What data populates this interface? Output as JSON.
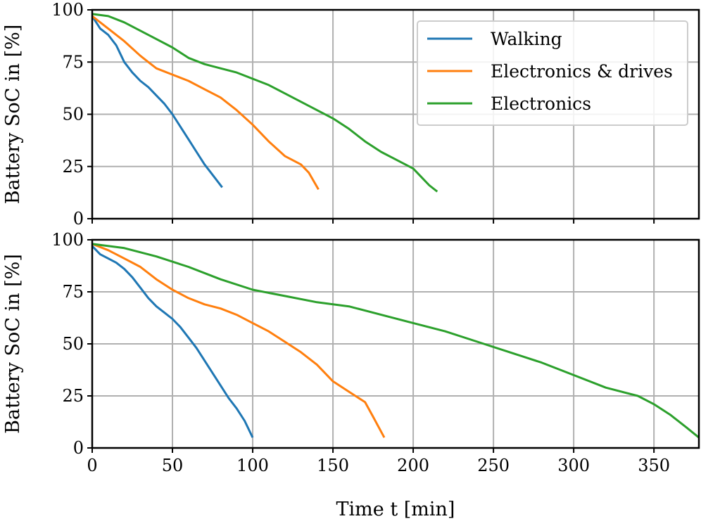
{
  "chart_data": [
    {
      "type": "line",
      "title": "",
      "xlabel": "",
      "ylabel": "Battery SoC in [%]",
      "xlim": [
        0,
        378
      ],
      "ylim": [
        0,
        100
      ],
      "xticks": [
        0,
        50,
        100,
        150,
        200,
        250,
        300,
        350
      ],
      "yticks": [
        0,
        25,
        50,
        75,
        100
      ],
      "grid": true,
      "legend": {
        "placement": "top-right"
      },
      "series": [
        {
          "name": "Walking",
          "color": "#1f77b4",
          "x": [
            0,
            5,
            10,
            15,
            20,
            25,
            30,
            35,
            40,
            45,
            50,
            55,
            60,
            65,
            70,
            75,
            81
          ],
          "y": [
            97,
            91,
            88,
            83,
            75,
            70,
            66,
            63,
            59,
            55,
            50,
            44,
            38,
            32,
            26,
            21,
            15
          ]
        },
        {
          "name": "Electronics & drives",
          "color": "#ff7f0e",
          "x": [
            0,
            10,
            20,
            30,
            35,
            40,
            50,
            60,
            70,
            80,
            90,
            100,
            110,
            120,
            130,
            135,
            141
          ],
          "y": [
            97,
            91,
            85,
            78,
            75,
            72,
            69,
            66,
            62,
            58,
            52,
            45,
            37,
            30,
            26,
            22,
            14
          ]
        },
        {
          "name": "Electronics",
          "color": "#2ca02c",
          "x": [
            0,
            10,
            20,
            30,
            40,
            50,
            60,
            70,
            80,
            90,
            100,
            110,
            120,
            130,
            140,
            150,
            160,
            170,
            180,
            190,
            200,
            205,
            210,
            215
          ],
          "y": [
            98,
            97,
            94,
            90,
            86,
            82,
            77,
            74,
            72,
            70,
            67,
            64,
            60,
            56,
            52,
            48,
            43,
            37,
            32,
            28,
            24,
            20,
            16,
            13
          ]
        }
      ]
    },
    {
      "type": "line",
      "title": "",
      "xlabel": "Time t [min]",
      "ylabel": "Battery SoC in [%]",
      "xlim": [
        0,
        378
      ],
      "ylim": [
        0,
        100
      ],
      "xticks": [
        0,
        50,
        100,
        150,
        200,
        250,
        300,
        350
      ],
      "yticks": [
        0,
        25,
        50,
        75,
        100
      ],
      "grid": true,
      "series": [
        {
          "color": "#1f77b4",
          "x": [
            0,
            5,
            10,
            15,
            20,
            25,
            30,
            35,
            40,
            45,
            50,
            55,
            60,
            65,
            70,
            75,
            80,
            85,
            90,
            95,
            100
          ],
          "y": [
            97,
            93,
            91,
            89,
            86,
            82,
            77,
            72,
            68,
            65,
            62,
            58,
            53,
            48,
            42,
            36,
            30,
            24,
            19,
            13,
            5
          ]
        },
        {
          "color": "#ff7f0e",
          "x": [
            0,
            10,
            20,
            30,
            40,
            50,
            60,
            70,
            80,
            90,
            100,
            110,
            120,
            130,
            140,
            150,
            160,
            170,
            175,
            182
          ],
          "y": [
            98,
            95,
            91,
            87,
            81,
            76,
            72,
            69,
            67,
            64,
            60,
            56,
            51,
            46,
            40,
            32,
            27,
            22,
            15,
            5
          ]
        },
        {
          "color": "#2ca02c",
          "x": [
            0,
            20,
            40,
            60,
            80,
            100,
            120,
            140,
            160,
            180,
            200,
            220,
            240,
            260,
            280,
            300,
            320,
            340,
            350,
            360,
            370,
            378
          ],
          "y": [
            98,
            96,
            92,
            87,
            81,
            76,
            73,
            70,
            68,
            64,
            60,
            56,
            51,
            46,
            41,
            35,
            29,
            25,
            21,
            16,
            10,
            5
          ]
        }
      ]
    }
  ]
}
